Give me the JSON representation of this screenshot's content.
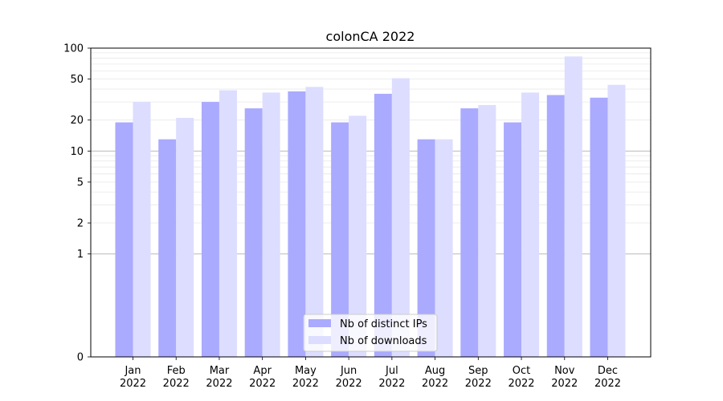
{
  "chart_data": {
    "type": "bar",
    "title": "colonCA 2022",
    "xlabel": "",
    "ylabel": "",
    "y_scale": "symlog",
    "ylim": [
      0,
      100
    ],
    "y_ticks": [
      "0",
      "1",
      "2",
      "5",
      "10",
      "20",
      "50",
      "100"
    ],
    "categories": [
      "Jan\n2022",
      "Feb\n2022",
      "Mar\n2022",
      "Apr\n2022",
      "May\n2022",
      "Jun\n2022",
      "Jul\n2022",
      "Aug\n2022",
      "Sep\n2022",
      "Oct\n2022",
      "Nov\n2022",
      "Dec\n2022"
    ],
    "series": [
      {
        "name": "Nb of distinct IPs",
        "color": "#aaaaff",
        "values": [
          19,
          13,
          30,
          26,
          38,
          19,
          36,
          13,
          26,
          19,
          35,
          33
        ]
      },
      {
        "name": "Nb of downloads",
        "color": "#ddddff",
        "values": [
          30,
          21,
          39,
          37,
          42,
          22,
          51,
          13,
          28,
          37,
          83,
          44
        ]
      }
    ],
    "grid": "y",
    "legend_position": "lower-center"
  }
}
